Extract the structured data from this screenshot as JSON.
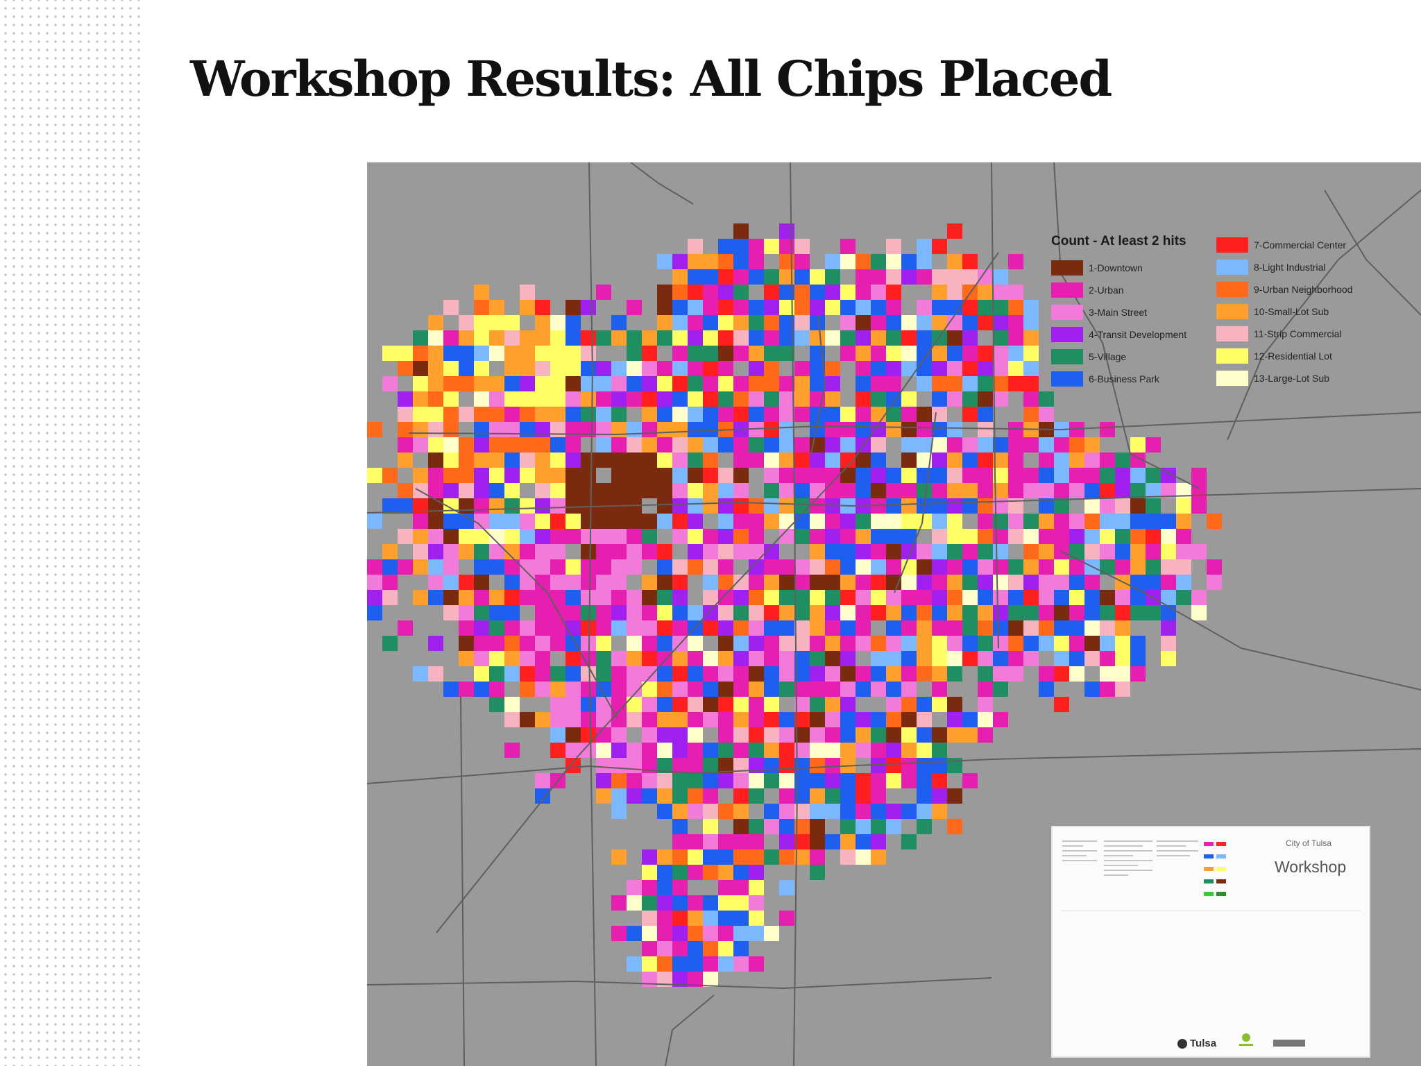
{
  "slide": {
    "title": "Workshop Results: All Chips Placed"
  },
  "map": {
    "background_color": "#9a9a9a",
    "road_color": "#5f5f5f",
    "legend": {
      "title": "Count - At least 2 hits",
      "items": [
        {
          "label": "1-Downtown",
          "color": "#7a2a0e"
        },
        {
          "label": "2-Urban",
          "color": "#e61fb0"
        },
        {
          "label": "3-Main Street",
          "color": "#f27ad8"
        },
        {
          "label": "4-Transit Development",
          "color": "#a020f0"
        },
        {
          "label": "5-Village",
          "color": "#1f8f63"
        },
        {
          "label": "6-Business Park",
          "color": "#1f5ff0"
        },
        {
          "label": "7-Commercial Center",
          "color": "#ff1f1f"
        },
        {
          "label": "8-Light Industrial",
          "color": "#7bb8ff"
        },
        {
          "label": "9-Urban Neighborhood",
          "color": "#ff6a1a"
        },
        {
          "label": "10-Small-Lot Sub",
          "color": "#ff9f2e"
        },
        {
          "label": "11-Strip Commercial",
          "color": "#f7b3c0"
        },
        {
          "label": "12-Residential Lot",
          "color": "#ffff66"
        },
        {
          "label": "13-Large-Lot Sub",
          "color": "#ffffcc"
        }
      ]
    },
    "inset": {
      "city": "City of Tulsa",
      "title": "Workshop",
      "logo_text": "Tulsa"
    }
  }
}
